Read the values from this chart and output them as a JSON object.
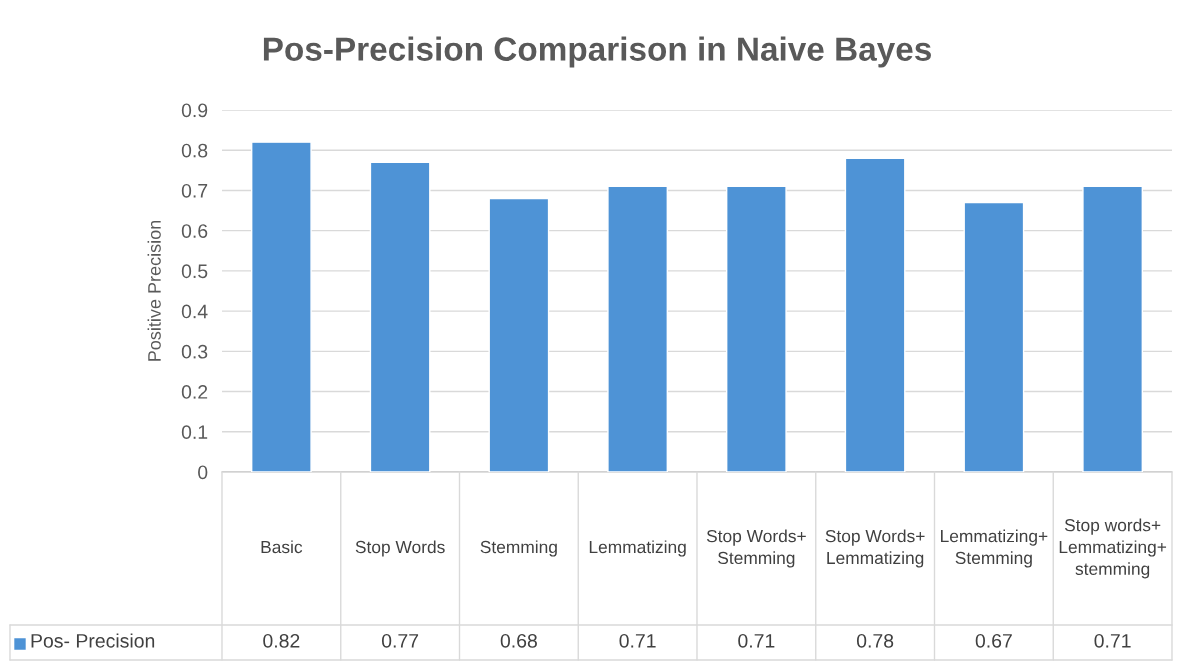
{
  "chart_data": {
    "type": "bar",
    "title": "Pos-Precision Comparison in Naive Bayes",
    "ylabel": "Positive Precision",
    "categories": [
      "Basic",
      "Stop Words",
      "Stemming",
      "Lemmatizing",
      "Stop Words+Stemming",
      "Stop Words+Lemmatizing",
      "Lemmatizing+Stemming",
      "Stop words+Lemmatizing+stemming"
    ],
    "series": [
      {
        "name": "Pos- Precision",
        "color": "#4e93d6",
        "values": [
          0.82,
          0.77,
          0.68,
          0.71,
          0.71,
          0.78,
          0.67,
          0.71
        ]
      }
    ],
    "ylim": [
      0,
      0.9
    ],
    "yticks": [
      0,
      0.1,
      0.2,
      0.3,
      0.4,
      0.5,
      0.6,
      0.7,
      0.8,
      0.9
    ],
    "grid": "y",
    "legend": "bottom",
    "data_labels": true
  }
}
